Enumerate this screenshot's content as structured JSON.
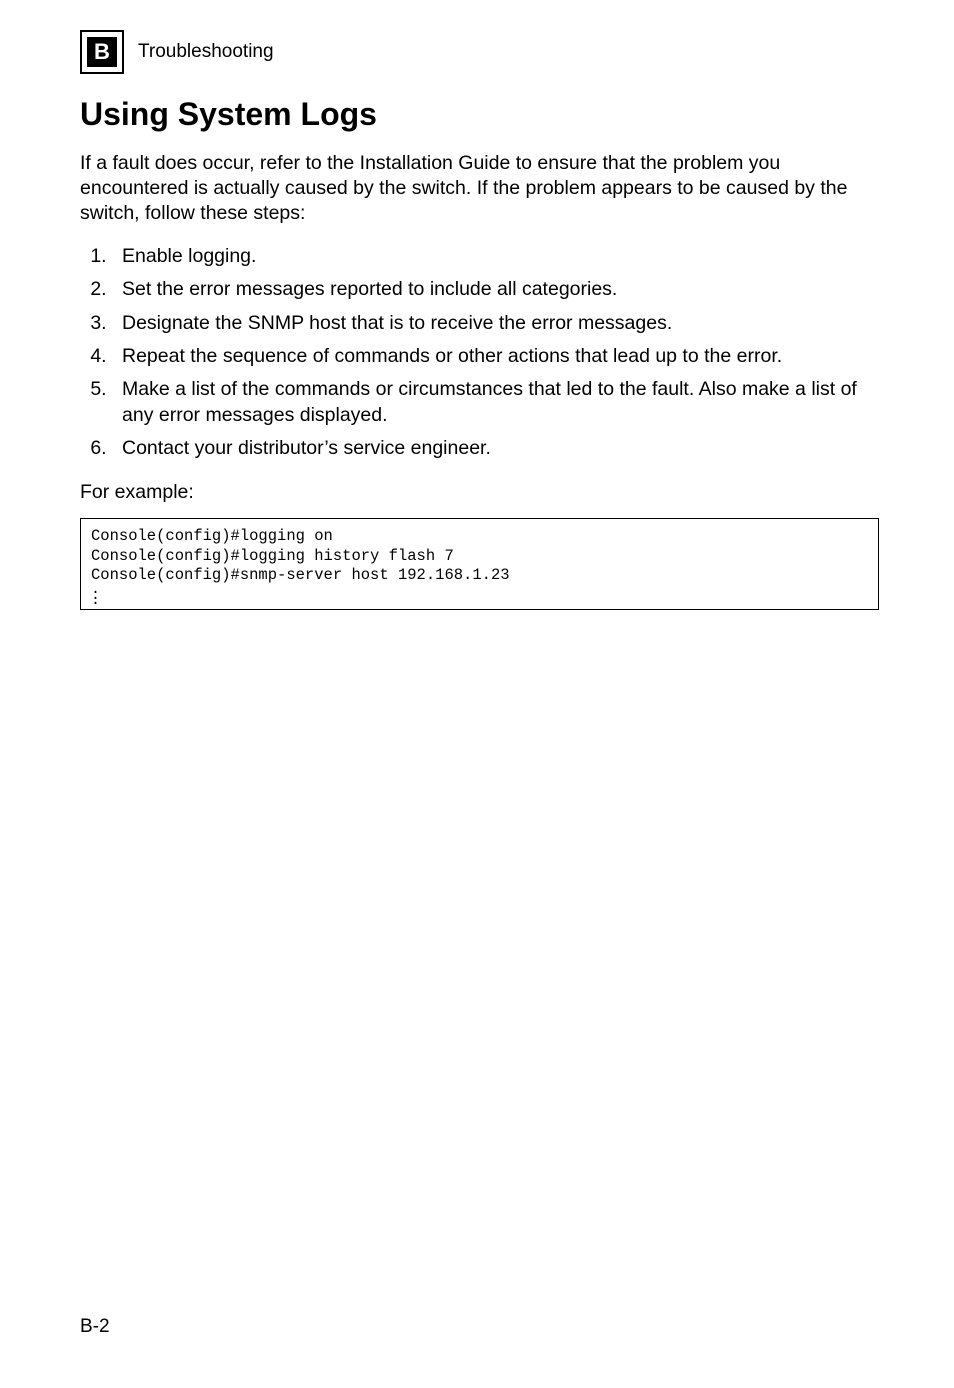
{
  "header": {
    "badge_letter": "B",
    "breadcrumb": "Troubleshooting"
  },
  "title": "Using System Logs",
  "intro": "If a fault does occur, refer to the Installation Guide to ensure that the problem you encountered is actually caused by the switch. If the problem appears to be caused by the switch, follow these steps:",
  "steps": [
    "Enable logging.",
    "Set the error messages reported to include all categories.",
    "Designate the SNMP host that is to receive the error messages.",
    "Repeat the sequence of commands or other actions that lead up to the error.",
    "Make a list of the commands or circumstances that led to the fault. Also make a list of any error messages displayed.",
    "Contact your distributor’s service engineer."
  ],
  "example_label": "For example:",
  "code_lines": [
    "Console(config)#logging on",
    "Console(config)#logging history flash 7",
    "Console(config)#snmp-server host 192.168.1.23"
  ],
  "footer": "B-2",
  "colors": {
    "background": "#ffffff",
    "text": "#000000",
    "badge_bg": "#000000",
    "badge_fg": "#ffffff",
    "border": "#000000"
  },
  "typography": {
    "body_font": "Arial",
    "code_font": "Courier New",
    "title_size_pt": 24,
    "body_size_pt": 15,
    "code_size_pt": 12
  }
}
